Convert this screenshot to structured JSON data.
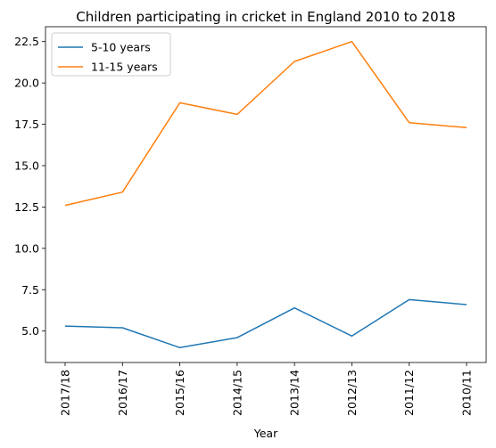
{
  "chart_data": {
    "type": "line",
    "title": "Children participating in cricket in England 2010 to 2018",
    "xlabel": "Year",
    "ylabel": "",
    "categories": [
      "2017/18",
      "2016/17",
      "2015/16",
      "2014/15",
      "2013/14",
      "2012/13",
      "2011/12",
      "2010/11"
    ],
    "series": [
      {
        "name": "5-10 years",
        "color": "#1f77b4",
        "values": [
          5.3,
          5.2,
          4.0,
          4.6,
          6.4,
          4.7,
          6.9,
          6.6
        ]
      },
      {
        "name": "11-15 years",
        "color": "#ff7f0e",
        "values": [
          12.6,
          13.4,
          18.8,
          18.1,
          21.3,
          22.5,
          17.6,
          17.3
        ]
      }
    ],
    "ylim": [
      3.1,
      23.4
    ],
    "yticks": [
      5.0,
      7.5,
      10.0,
      12.5,
      15.0,
      17.5,
      20.0,
      22.5
    ],
    "ytick_labels": [
      "5.0",
      "7.5",
      "10.0",
      "12.5",
      "15.0",
      "17.5",
      "20.0",
      "22.5"
    ],
    "grid": false,
    "legend_position": "upper left"
  }
}
